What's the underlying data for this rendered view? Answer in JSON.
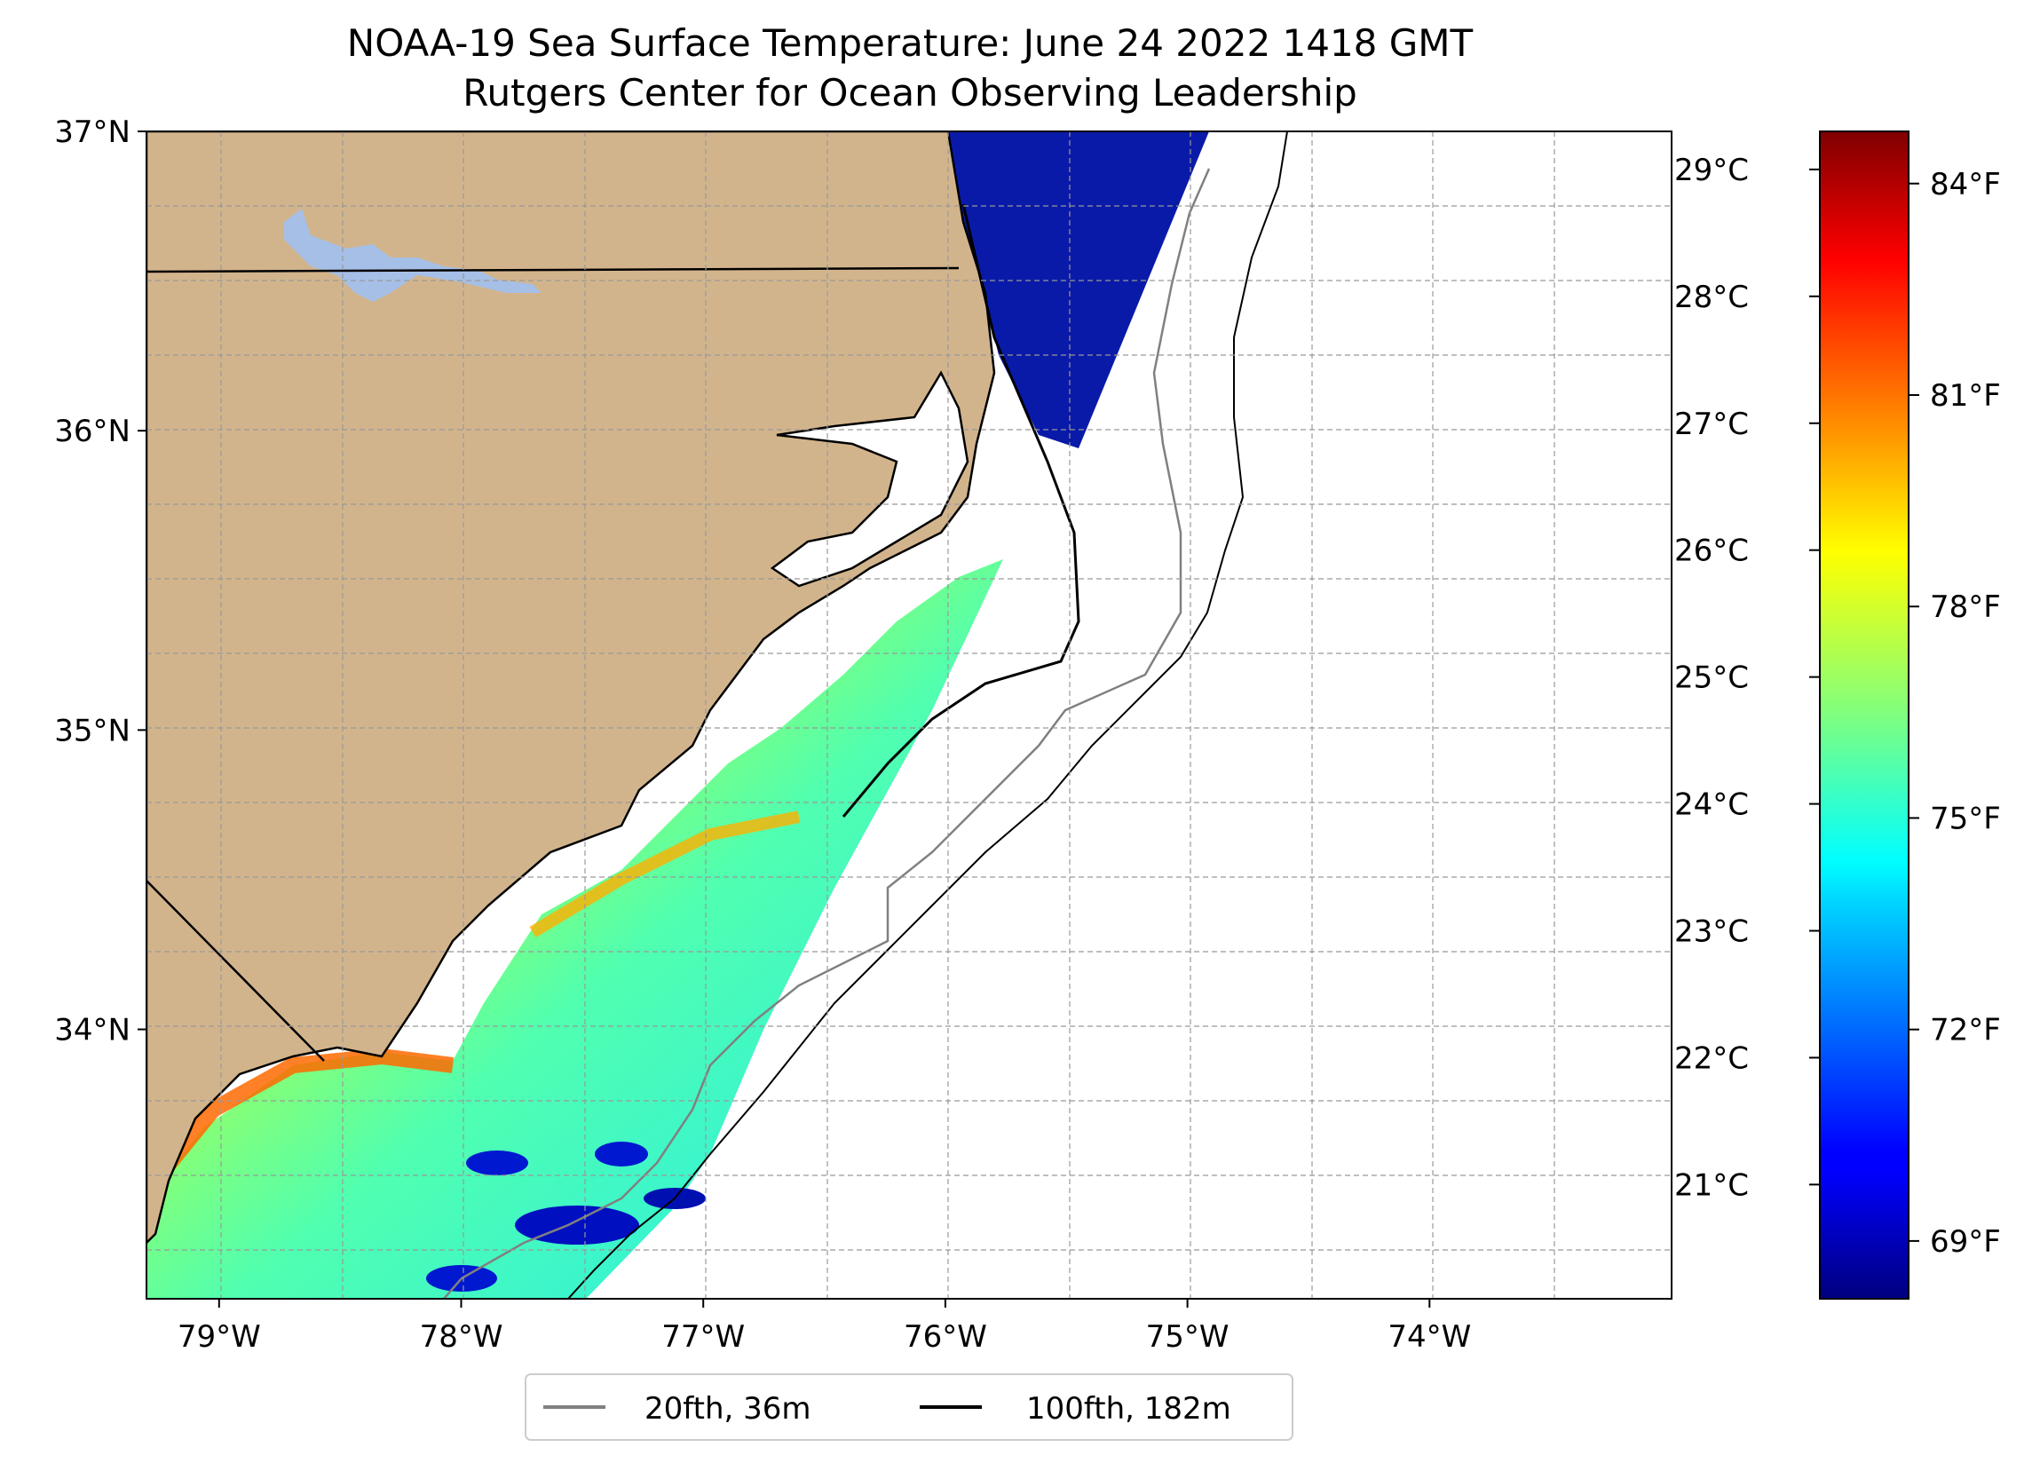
{
  "title_line1": "NOAA-19 Sea Surface Temperature: June 24 2022 1418 GMT",
  "title_line2": "Rutgers Center for Ocean Observing Leadership",
  "map": {
    "lon_range": [
      -79.3,
      -73.0
    ],
    "lat_range": [
      33.1,
      37.0
    ],
    "lon_labels": [
      {
        "value": -79,
        "label": "79°W"
      },
      {
        "value": -78,
        "label": "78°W"
      },
      {
        "value": -77,
        "label": "77°W"
      },
      {
        "value": -76,
        "label": "76°W"
      },
      {
        "value": -75,
        "label": "75°W"
      },
      {
        "value": -74,
        "label": "74°W"
      }
    ],
    "lat_labels": [
      {
        "value": 37,
        "label": "37°N"
      },
      {
        "value": 36,
        "label": "36°N"
      },
      {
        "value": 35,
        "label": "35°N"
      },
      {
        "value": 34,
        "label": "34°N"
      }
    ],
    "gridlines": "dashed",
    "land_color": "#d2b48c",
    "lake_color": "#a6bfe6"
  },
  "colorbar": {
    "colormap": "jet",
    "celsius_range": [
      20.1,
      29.3
    ],
    "celsius_ticks": [
      {
        "value": 21,
        "label": "21°C"
      },
      {
        "value": 22,
        "label": "22°C"
      },
      {
        "value": 23,
        "label": "23°C"
      },
      {
        "value": 24,
        "label": "24°C"
      },
      {
        "value": 25,
        "label": "25°C"
      },
      {
        "value": 26,
        "label": "26°C"
      },
      {
        "value": 27,
        "label": "27°C"
      },
      {
        "value": 28,
        "label": "28°C"
      },
      {
        "value": 29,
        "label": "29°C"
      }
    ],
    "fahrenheit_ticks": [
      {
        "value": 69,
        "label": "69°F"
      },
      {
        "value": 72,
        "label": "72°F"
      },
      {
        "value": 75,
        "label": "75°F"
      },
      {
        "value": 78,
        "label": "78°F"
      },
      {
        "value": 81,
        "label": "81°F"
      },
      {
        "value": 84,
        "label": "84°F"
      }
    ]
  },
  "legend": {
    "placement": "bottom-center",
    "items": [
      {
        "label": "20fth, 36m",
        "color": "#808080"
      },
      {
        "label": "100fth, 182m",
        "color": "#000000"
      }
    ]
  }
}
